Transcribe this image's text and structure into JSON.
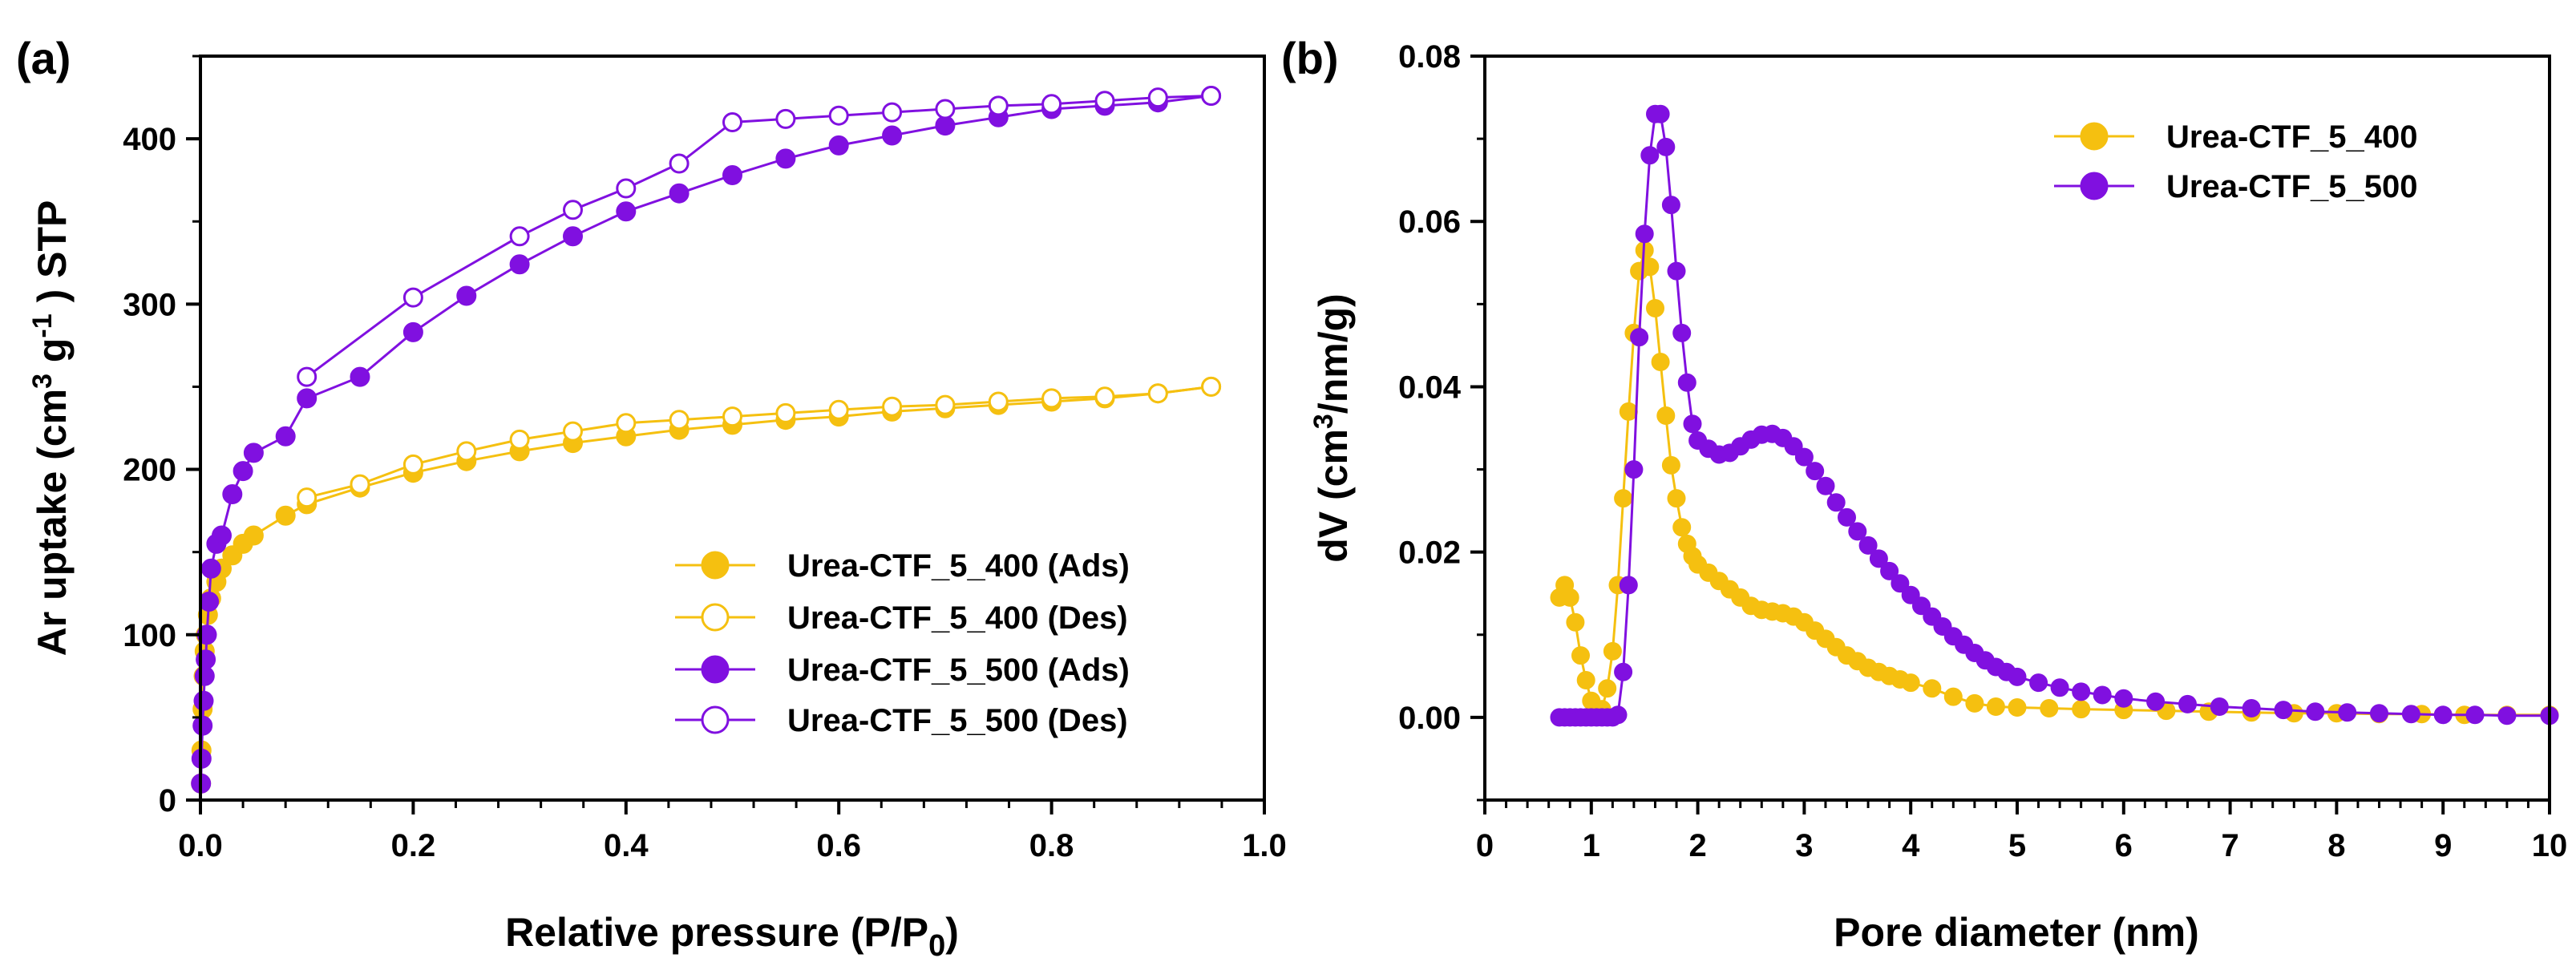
{
  "chart_data": [
    {
      "panel": "(a)",
      "type": "line",
      "xlabel": "Relative pressure (P/P",
      "xlabel_sub": "0",
      "xlabel_end": ")",
      "ylabel": "Ar uptake (cm",
      "ylabel_sup": "3",
      "ylabel_mid": " g",
      "ylabel_sup2": "-1",
      "ylabel_end": " ) STP",
      "xlim": [
        0,
        1.0
      ],
      "ylim": [
        0,
        450
      ],
      "xticks": [
        0.0,
        0.2,
        0.4,
        0.6,
        0.8,
        1.0
      ],
      "xtick_labels": [
        "0.0",
        "0.2",
        "0.4",
        "0.6",
        "0.8",
        "1.0"
      ],
      "yticks": [
        0,
        100,
        200,
        300,
        400
      ],
      "ytick_labels": [
        "0",
        "100",
        "200",
        "300",
        "400"
      ],
      "legend_position": "bottom-right",
      "series": [
        {
          "name": "Urea-CTF_5_400 (Ads)",
          "color": "#F5C010",
          "filled": true,
          "x": [
            0.0005,
            0.001,
            0.002,
            0.003,
            0.004,
            0.005,
            0.007,
            0.01,
            0.015,
            0.02,
            0.03,
            0.04,
            0.05,
            0.08,
            0.1,
            0.15,
            0.2,
            0.25,
            0.3,
            0.35,
            0.4,
            0.45,
            0.5,
            0.55,
            0.6,
            0.65,
            0.7,
            0.75,
            0.8,
            0.85,
            0.9,
            0.95
          ],
          "y": [
            10,
            30,
            55,
            75,
            90,
            100,
            112,
            122,
            132,
            140,
            148,
            155,
            160,
            172,
            179,
            189,
            198,
            205,
            211,
            216,
            220,
            224,
            227,
            230,
            232,
            235,
            237,
            239,
            241,
            243,
            246,
            250
          ]
        },
        {
          "name": "Urea-CTF_5_400 (Des)",
          "color": "#F5C010",
          "filled": false,
          "x": [
            0.95,
            0.9,
            0.85,
            0.8,
            0.75,
            0.7,
            0.65,
            0.6,
            0.55,
            0.5,
            0.45,
            0.4,
            0.35,
            0.3,
            0.25,
            0.2,
            0.15,
            0.1
          ],
          "y": [
            250,
            246,
            244,
            243,
            241,
            239,
            238,
            236,
            234,
            232,
            230,
            228,
            223,
            218,
            211,
            203,
            191,
            183
          ]
        },
        {
          "name": "Urea-CTF_5_500 (Ads)",
          "color": "#8010E0",
          "filled": true,
          "x": [
            0.0005,
            0.001,
            0.002,
            0.003,
            0.004,
            0.005,
            0.006,
            0.008,
            0.01,
            0.015,
            0.02,
            0.03,
            0.04,
            0.05,
            0.08,
            0.1,
            0.15,
            0.2,
            0.25,
            0.3,
            0.35,
            0.4,
            0.45,
            0.5,
            0.55,
            0.6,
            0.65,
            0.7,
            0.75,
            0.8,
            0.85,
            0.9,
            0.95
          ],
          "y": [
            10,
            25,
            45,
            60,
            75,
            85,
            100,
            120,
            140,
            155,
            160,
            185,
            199,
            210,
            220,
            243,
            256,
            283,
            305,
            324,
            341,
            356,
            367,
            378,
            388,
            396,
            402,
            408,
            413,
            418,
            420,
            422,
            426
          ]
        },
        {
          "name": "Urea-CTF_5_500 (Des)",
          "color": "#8010E0",
          "filled": false,
          "x": [
            0.95,
            0.9,
            0.85,
            0.8,
            0.75,
            0.7,
            0.65,
            0.6,
            0.55,
            0.5,
            0.45,
            0.4,
            0.35,
            0.3,
            0.2,
            0.1
          ],
          "y": [
            426,
            425,
            423,
            421,
            420,
            418,
            416,
            414,
            412,
            410,
            385,
            370,
            357,
            341,
            304,
            256
          ]
        }
      ]
    },
    {
      "panel": "(b)",
      "type": "line",
      "xlabel": "Pore diameter (nm)",
      "ylabel": "dV (cm",
      "ylabel_sup": "3",
      "ylabel_end": "/nm/g)",
      "xlim": [
        0,
        10
      ],
      "ylim": [
        -0.01,
        0.08
      ],
      "xticks": [
        0,
        1,
        2,
        3,
        4,
        5,
        6,
        7,
        8,
        9,
        10
      ],
      "xtick_labels": [
        "0",
        "1",
        "2",
        "3",
        "4",
        "5",
        "6",
        "7",
        "8",
        "9",
        "10"
      ],
      "yticks": [
        0.0,
        0.02,
        0.04,
        0.06,
        0.08
      ],
      "ytick_labels": [
        "0.00",
        "0.02",
        "0.04",
        "0.06",
        "0.08"
      ],
      "legend_position": "top-right",
      "series": [
        {
          "name": "Urea-CTF_5_400",
          "color": "#F5C010",
          "filled": true,
          "x": [
            0.7,
            0.75,
            0.8,
            0.85,
            0.9,
            0.95,
            1.0,
            1.05,
            1.1,
            1.15,
            1.2,
            1.25,
            1.3,
            1.35,
            1.4,
            1.45,
            1.5,
            1.55,
            1.6,
            1.65,
            1.7,
            1.75,
            1.8,
            1.85,
            1.9,
            1.95,
            2.0,
            2.1,
            2.2,
            2.3,
            2.4,
            2.5,
            2.6,
            2.7,
            2.8,
            2.9,
            3.0,
            3.1,
            3.2,
            3.3,
            3.4,
            3.5,
            3.6,
            3.7,
            3.8,
            3.9,
            4.0,
            4.2,
            4.4,
            4.6,
            4.8,
            5.0,
            5.3,
            5.6,
            6.0,
            6.4,
            6.8,
            7.2,
            7.6,
            8.0,
            8.4,
            8.8,
            9.2,
            9.6,
            10.0
          ],
          "y": [
            0.0145,
            0.016,
            0.0145,
            0.0115,
            0.0075,
            0.0045,
            0.002,
            0.0005,
            0.001,
            0.0035,
            0.008,
            0.016,
            0.0265,
            0.037,
            0.0465,
            0.054,
            0.0565,
            0.0545,
            0.0495,
            0.043,
            0.0365,
            0.0305,
            0.0265,
            0.023,
            0.021,
            0.0195,
            0.0185,
            0.0175,
            0.0165,
            0.0155,
            0.0145,
            0.0135,
            0.013,
            0.0128,
            0.0126,
            0.0122,
            0.0115,
            0.0105,
            0.0095,
            0.0085,
            0.0075,
            0.0068,
            0.006,
            0.0055,
            0.005,
            0.0046,
            0.0042,
            0.0035,
            0.0025,
            0.0017,
            0.0013,
            0.0012,
            0.0011,
            0.001,
            0.0009,
            0.0008,
            0.0007,
            0.0006,
            0.0005,
            0.0005,
            0.0004,
            0.0004,
            0.0003,
            0.0003,
            0.0003
          ]
        },
        {
          "name": "Urea-CTF_5_500",
          "color": "#8010E0",
          "filled": true,
          "x": [
            0.7,
            0.75,
            0.8,
            0.85,
            0.9,
            0.95,
            1.0,
            1.05,
            1.1,
            1.15,
            1.2,
            1.25,
            1.3,
            1.35,
            1.4,
            1.45,
            1.5,
            1.55,
            1.6,
            1.65,
            1.7,
            1.75,
            1.8,
            1.85,
            1.9,
            1.95,
            2.0,
            2.1,
            2.2,
            2.3,
            2.4,
            2.5,
            2.6,
            2.7,
            2.8,
            2.9,
            3.0,
            3.1,
            3.2,
            3.3,
            3.4,
            3.5,
            3.6,
            3.7,
            3.8,
            3.9,
            4.0,
            4.1,
            4.2,
            4.3,
            4.4,
            4.5,
            4.6,
            4.7,
            4.8,
            4.9,
            5.0,
            5.2,
            5.4,
            5.6,
            5.8,
            6.0,
            6.3,
            6.6,
            6.9,
            7.2,
            7.5,
            7.8,
            8.1,
            8.4,
            8.7,
            9.0,
            9.3,
            9.6,
            10.0
          ],
          "y": [
            0.0,
            0.0,
            0.0,
            0.0,
            0.0,
            0.0,
            0.0,
            0.0,
            0.0,
            0.0,
            0.0,
            0.0003,
            0.0055,
            0.016,
            0.03,
            0.046,
            0.0585,
            0.068,
            0.073,
            0.073,
            0.069,
            0.062,
            0.054,
            0.0465,
            0.0405,
            0.0355,
            0.0335,
            0.0325,
            0.0318,
            0.032,
            0.0328,
            0.0336,
            0.0342,
            0.0343,
            0.0338,
            0.0328,
            0.0315,
            0.0298,
            0.028,
            0.026,
            0.0242,
            0.0225,
            0.0208,
            0.0192,
            0.0177,
            0.0162,
            0.0148,
            0.0135,
            0.0122,
            0.011,
            0.0098,
            0.0088,
            0.0078,
            0.0069,
            0.0061,
            0.0055,
            0.0049,
            0.0042,
            0.0036,
            0.0031,
            0.0027,
            0.0023,
            0.0019,
            0.0016,
            0.0013,
            0.0011,
            0.0009,
            0.0007,
            0.0006,
            0.0005,
            0.0004,
            0.0003,
            0.0003,
            0.0002,
            0.0002
          ]
        }
      ]
    }
  ]
}
